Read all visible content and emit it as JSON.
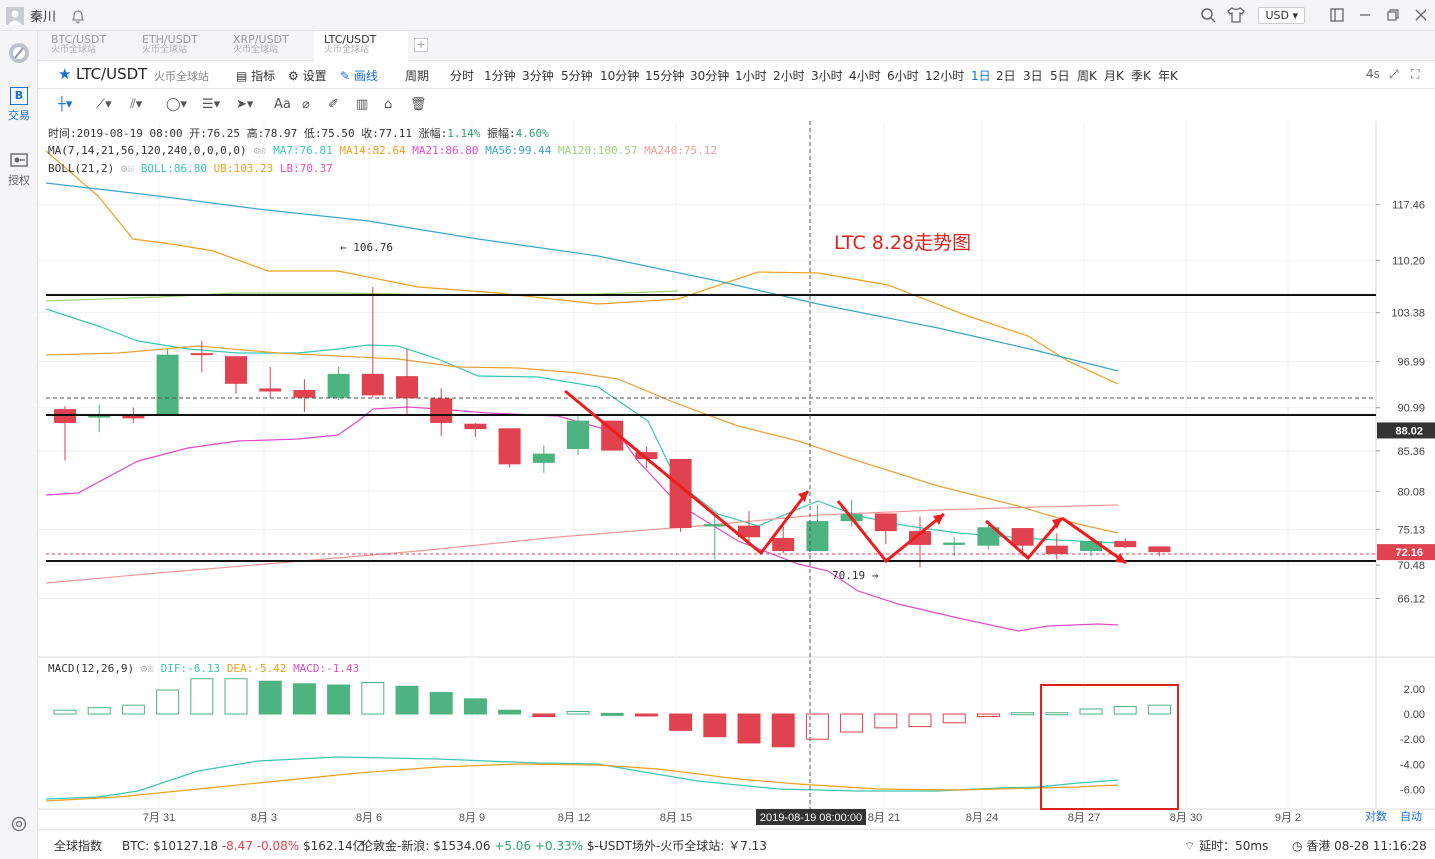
{
  "user": {
    "name": "秦川"
  },
  "topbar": {
    "currency": "USD ▾"
  },
  "sidebar": {
    "trade_label": "交易",
    "auth_label": "授权"
  },
  "tabs": [
    {
      "symbol": "BTC/USDT",
      "exchange": "火币全球站"
    },
    {
      "symbol": "ETH/USDT",
      "exchange": "火币全球站"
    },
    {
      "symbol": "XRP/USDT",
      "exchange": "火币全球站"
    },
    {
      "symbol": "LTC/USDT",
      "exchange": "火币全球站"
    }
  ],
  "toolbar": {
    "symbol": "LTC/USDT",
    "exchange": "火币全球站",
    "indicator_label": "指标",
    "settings_label": "设置",
    "draw_label": "画线",
    "period_label": "周期",
    "periods": [
      "分时",
      "1分钟",
      "3分钟",
      "5分钟",
      "10分钟",
      "15分钟",
      "30分钟",
      "1小时",
      "2小时",
      "3小时",
      "4小时",
      "6小时",
      "12小时",
      "1日",
      "2日",
      "3日",
      "5日",
      "周K",
      "月K",
      "季K",
      "年K"
    ],
    "active_period": "1日",
    "refresh": "4s"
  },
  "info": {
    "ohlc": "时间:2019-08-19 08:00  开:76.25  高:78.97  低:75.50  收:77.11  涨幅:",
    "change": "1.14%",
    "amplitude_label": "  振幅:",
    "amplitude": "4.60%",
    "ma_label": "MA(7,14,21,56,120,240,0,0,0,0)",
    "ma7": "MA7:76.81",
    "ma14": "MA14:82.64",
    "ma21": "MA21:86.80",
    "ma56": "MA56:99.44",
    "ma120": "MA120:100.57",
    "ma240": "MA240:75.12",
    "boll_label": "BOLL(21,2)",
    "boll": "BOLL:86.80",
    "ub": "UB:103.23",
    "lb": "LB:70.37",
    "macd_label": "MACD(12,26,9)",
    "dif": "DIF:-6.13",
    "dea": "DEA:-5.42",
    "macd": "MACD:-1.43"
  },
  "annotation": {
    "title": "LTC  8.28走势图",
    "high": "← 106.76",
    "low": "70.19 →"
  },
  "colors": {
    "up": "#4db380",
    "down": "#e0424f",
    "ma7": "#3cc6b5",
    "ma14": "#f0a020",
    "ma21": "#e24cc8",
    "ma56": "#3aa6c8",
    "ma120": "#9ed27a",
    "ma240": "#f29a9a"
  },
  "chart_data": {
    "type": "candlestick",
    "price_ticks": [
      "117.46",
      "110.20",
      "103.38",
      "96.99",
      "90.99",
      "85.36",
      "80.08",
      "75.13",
      "70.48",
      "66.12"
    ],
    "last_price": "72.16",
    "crosshair_price": "88.02",
    "crosshair_time": "2019-08-19 08:00:00",
    "x_labels": [
      "7月 31",
      "8月 3",
      "8月 6",
      "8月 9",
      "8月 12",
      "8月 15",
      "8月 21",
      "8月 24",
      "8月 27",
      "8月 30",
      "9月 2"
    ],
    "macd_ticks": [
      "2.00",
      "0.00",
      "-2.00",
      "-4.00",
      "-6.00"
    ],
    "candles": [
      [
        90.8,
        91.2,
        84.1,
        89.0
      ],
      [
        89.7,
        91.4,
        87.8,
        90.0
      ],
      [
        90.0,
        91.0,
        89.0,
        89.6
      ],
      [
        90.0,
        98.7,
        90.0,
        97.9
      ],
      [
        98.1,
        99.7,
        95.6,
        97.9
      ],
      [
        97.7,
        97.7,
        92.8,
        94.1
      ],
      [
        93.5,
        96.3,
        92.2,
        93.1
      ],
      [
        93.3,
        94.7,
        90.4,
        92.3
      ],
      [
        92.3,
        96.3,
        92.0,
        95.4
      ],
      [
        95.4,
        106.76,
        92.3,
        92.6
      ],
      [
        95.1,
        98.6,
        90.2,
        92.2
      ],
      [
        92.2,
        93.5,
        87.3,
        89.0
      ],
      [
        88.9,
        89.0,
        87.2,
        88.2
      ],
      [
        88.3,
        88.3,
        83.2,
        83.6
      ],
      [
        83.8,
        86.1,
        82.5,
        85.0
      ],
      [
        85.6,
        90.0,
        84.8,
        89.3
      ],
      [
        89.3,
        89.3,
        85.6,
        85.4
      ],
      [
        85.2,
        85.9,
        83.1,
        84.3
      ],
      [
        84.3,
        84.3,
        74.8,
        75.3
      ],
      [
        75.5,
        77.4,
        71.2,
        75.8
      ],
      [
        75.6,
        77.5,
        73.0,
        74.1
      ],
      [
        74.0,
        75.5,
        72.0,
        72.3
      ],
      [
        72.3,
        78.3,
        72.3,
        76.2
      ],
      [
        76.2,
        78.97,
        75.5,
        77.11
      ],
      [
        77.2,
        77.2,
        73.2,
        74.9
      ],
      [
        74.9,
        76.8,
        70.19,
        73.1
      ],
      [
        73.1,
        74.1,
        71.7,
        73.4
      ],
      [
        73.0,
        76.0,
        72.5,
        75.4
      ],
      [
        75.3,
        75.3,
        71.6,
        73.0
      ],
      [
        73.0,
        74.6,
        71.2,
        71.9
      ],
      [
        72.3,
        73.7,
        71.6,
        73.6
      ],
      [
        73.6,
        74.0,
        72.7,
        72.8
      ],
      [
        72.9,
        72.9,
        71.6,
        72.16
      ]
    ],
    "macd_hist": [
      0.3,
      0.5,
      0.7,
      1.9,
      2.8,
      2.8,
      2.6,
      2.4,
      2.3,
      2.5,
      2.2,
      1.7,
      1.2,
      0.3,
      -0.2,
      0.2,
      0.05,
      -0.1,
      -1.3,
      -1.8,
      -2.3,
      -2.6,
      -2.0,
      -1.43,
      -1.1,
      -1.0,
      -0.7,
      -0.2,
      0.1,
      0.1,
      0.4,
      0.6,
      0.7
    ]
  },
  "footer": {
    "index_label": "全球指数",
    "btc_label": "BTC:",
    "btc_price": "$10127.18",
    "btc_change": "-8.47 -0.08%",
    "btc_cap": "$162.14亿",
    "gold_label": "伦敦金-新浪:",
    "gold_price": "$1534.06",
    "gold_change": "+5.06 +0.33%",
    "gold_extra": "$--",
    "usdt_label": "USDT场外-火币全球站:",
    "usdt_price": "￥7.13",
    "latency": "延时：50ms",
    "clock": "香港 08-28 11:16:28",
    "contrast": "对数",
    "auto": "自动"
  }
}
